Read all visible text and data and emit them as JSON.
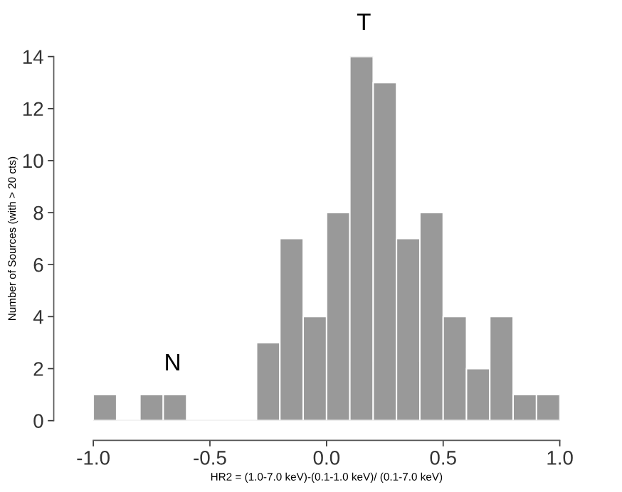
{
  "chart_data": {
    "type": "histogram",
    "xlabel": "HR2 = (1.0-7.0 keV)-(0.1-1.0 keV)/ (0.1-7.0 keV)",
    "ylabel": "Number of Sources (with > 20 cts)",
    "bins": [
      -1.0,
      -0.9,
      -0.8,
      -0.7,
      -0.6,
      -0.5,
      -0.4,
      -0.3,
      -0.2,
      -0.1,
      0.0,
      0.1,
      0.2,
      0.3,
      0.4,
      0.5,
      0.6,
      0.7,
      0.8,
      0.9,
      1.0
    ],
    "values": [
      1,
      0,
      1,
      1,
      0,
      0,
      0,
      3,
      7,
      4,
      8,
      14,
      13,
      7,
      8,
      4,
      2,
      4,
      1,
      1
    ],
    "color": "#999999",
    "xlim": [
      -1.0,
      1.0
    ],
    "ylim": [
      0,
      14
    ],
    "xticks": [
      {
        "value": -1.0,
        "label": "-1.0"
      },
      {
        "value": -0.5,
        "label": "-0.5"
      },
      {
        "value": 0.0,
        "label": "0.0"
      },
      {
        "value": 0.5,
        "label": "0.5"
      },
      {
        "value": 1.0,
        "label": "1.0"
      }
    ],
    "yticks": [
      0,
      2,
      4,
      6,
      8,
      10,
      12,
      14
    ],
    "ref_lines": [
      {
        "axis": "y",
        "value": 0,
        "color": "#eeeeee"
      }
    ],
    "annotations": [
      "N",
      "T"
    ],
    "grid": false
  }
}
